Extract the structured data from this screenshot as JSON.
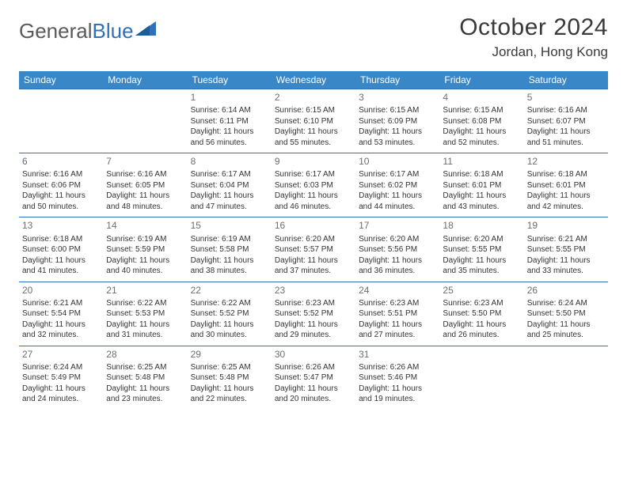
{
  "brand": {
    "part1": "General",
    "part2": "Blue"
  },
  "title": {
    "month": "October 2024",
    "location": "Jordan, Hong Kong"
  },
  "colors": {
    "header_bg": "#3a87c8",
    "header_text": "#ffffff",
    "rule": "#2f71b8",
    "body_text": "#333333",
    "daynum": "#6e6e6e",
    "logo_gray": "#5a5a5a",
    "logo_blue": "#2f71b8",
    "page_bg": "#ffffff"
  },
  "daysOfWeek": [
    "Sunday",
    "Monday",
    "Tuesday",
    "Wednesday",
    "Thursday",
    "Friday",
    "Saturday"
  ],
  "calendar": {
    "firstWeekday": 2,
    "daysInMonth": 31
  },
  "entries": {
    "1": {
      "sunrise": "6:14 AM",
      "sunset": "6:11 PM",
      "daylight": "11 hours and 56 minutes."
    },
    "2": {
      "sunrise": "6:15 AM",
      "sunset": "6:10 PM",
      "daylight": "11 hours and 55 minutes."
    },
    "3": {
      "sunrise": "6:15 AM",
      "sunset": "6:09 PM",
      "daylight": "11 hours and 53 minutes."
    },
    "4": {
      "sunrise": "6:15 AM",
      "sunset": "6:08 PM",
      "daylight": "11 hours and 52 minutes."
    },
    "5": {
      "sunrise": "6:16 AM",
      "sunset": "6:07 PM",
      "daylight": "11 hours and 51 minutes."
    },
    "6": {
      "sunrise": "6:16 AM",
      "sunset": "6:06 PM",
      "daylight": "11 hours and 50 minutes."
    },
    "7": {
      "sunrise": "6:16 AM",
      "sunset": "6:05 PM",
      "daylight": "11 hours and 48 minutes."
    },
    "8": {
      "sunrise": "6:17 AM",
      "sunset": "6:04 PM",
      "daylight": "11 hours and 47 minutes."
    },
    "9": {
      "sunrise": "6:17 AM",
      "sunset": "6:03 PM",
      "daylight": "11 hours and 46 minutes."
    },
    "10": {
      "sunrise": "6:17 AM",
      "sunset": "6:02 PM",
      "daylight": "11 hours and 44 minutes."
    },
    "11": {
      "sunrise": "6:18 AM",
      "sunset": "6:01 PM",
      "daylight": "11 hours and 43 minutes."
    },
    "12": {
      "sunrise": "6:18 AM",
      "sunset": "6:01 PM",
      "daylight": "11 hours and 42 minutes."
    },
    "13": {
      "sunrise": "6:18 AM",
      "sunset": "6:00 PM",
      "daylight": "11 hours and 41 minutes."
    },
    "14": {
      "sunrise": "6:19 AM",
      "sunset": "5:59 PM",
      "daylight": "11 hours and 40 minutes."
    },
    "15": {
      "sunrise": "6:19 AM",
      "sunset": "5:58 PM",
      "daylight": "11 hours and 38 minutes."
    },
    "16": {
      "sunrise": "6:20 AM",
      "sunset": "5:57 PM",
      "daylight": "11 hours and 37 minutes."
    },
    "17": {
      "sunrise": "6:20 AM",
      "sunset": "5:56 PM",
      "daylight": "11 hours and 36 minutes."
    },
    "18": {
      "sunrise": "6:20 AM",
      "sunset": "5:55 PM",
      "daylight": "11 hours and 35 minutes."
    },
    "19": {
      "sunrise": "6:21 AM",
      "sunset": "5:55 PM",
      "daylight": "11 hours and 33 minutes."
    },
    "20": {
      "sunrise": "6:21 AM",
      "sunset": "5:54 PM",
      "daylight": "11 hours and 32 minutes."
    },
    "21": {
      "sunrise": "6:22 AM",
      "sunset": "5:53 PM",
      "daylight": "11 hours and 31 minutes."
    },
    "22": {
      "sunrise": "6:22 AM",
      "sunset": "5:52 PM",
      "daylight": "11 hours and 30 minutes."
    },
    "23": {
      "sunrise": "6:23 AM",
      "sunset": "5:52 PM",
      "daylight": "11 hours and 29 minutes."
    },
    "24": {
      "sunrise": "6:23 AM",
      "sunset": "5:51 PM",
      "daylight": "11 hours and 27 minutes."
    },
    "25": {
      "sunrise": "6:23 AM",
      "sunset": "5:50 PM",
      "daylight": "11 hours and 26 minutes."
    },
    "26": {
      "sunrise": "6:24 AM",
      "sunset": "5:50 PM",
      "daylight": "11 hours and 25 minutes."
    },
    "27": {
      "sunrise": "6:24 AM",
      "sunset": "5:49 PM",
      "daylight": "11 hours and 24 minutes."
    },
    "28": {
      "sunrise": "6:25 AM",
      "sunset": "5:48 PM",
      "daylight": "11 hours and 23 minutes."
    },
    "29": {
      "sunrise": "6:25 AM",
      "sunset": "5:48 PM",
      "daylight": "11 hours and 22 minutes."
    },
    "30": {
      "sunrise": "6:26 AM",
      "sunset": "5:47 PM",
      "daylight": "11 hours and 20 minutes."
    },
    "31": {
      "sunrise": "6:26 AM",
      "sunset": "5:46 PM",
      "daylight": "11 hours and 19 minutes."
    }
  },
  "labels": {
    "sunrise": "Sunrise:",
    "sunset": "Sunset:",
    "daylight": "Daylight:"
  }
}
